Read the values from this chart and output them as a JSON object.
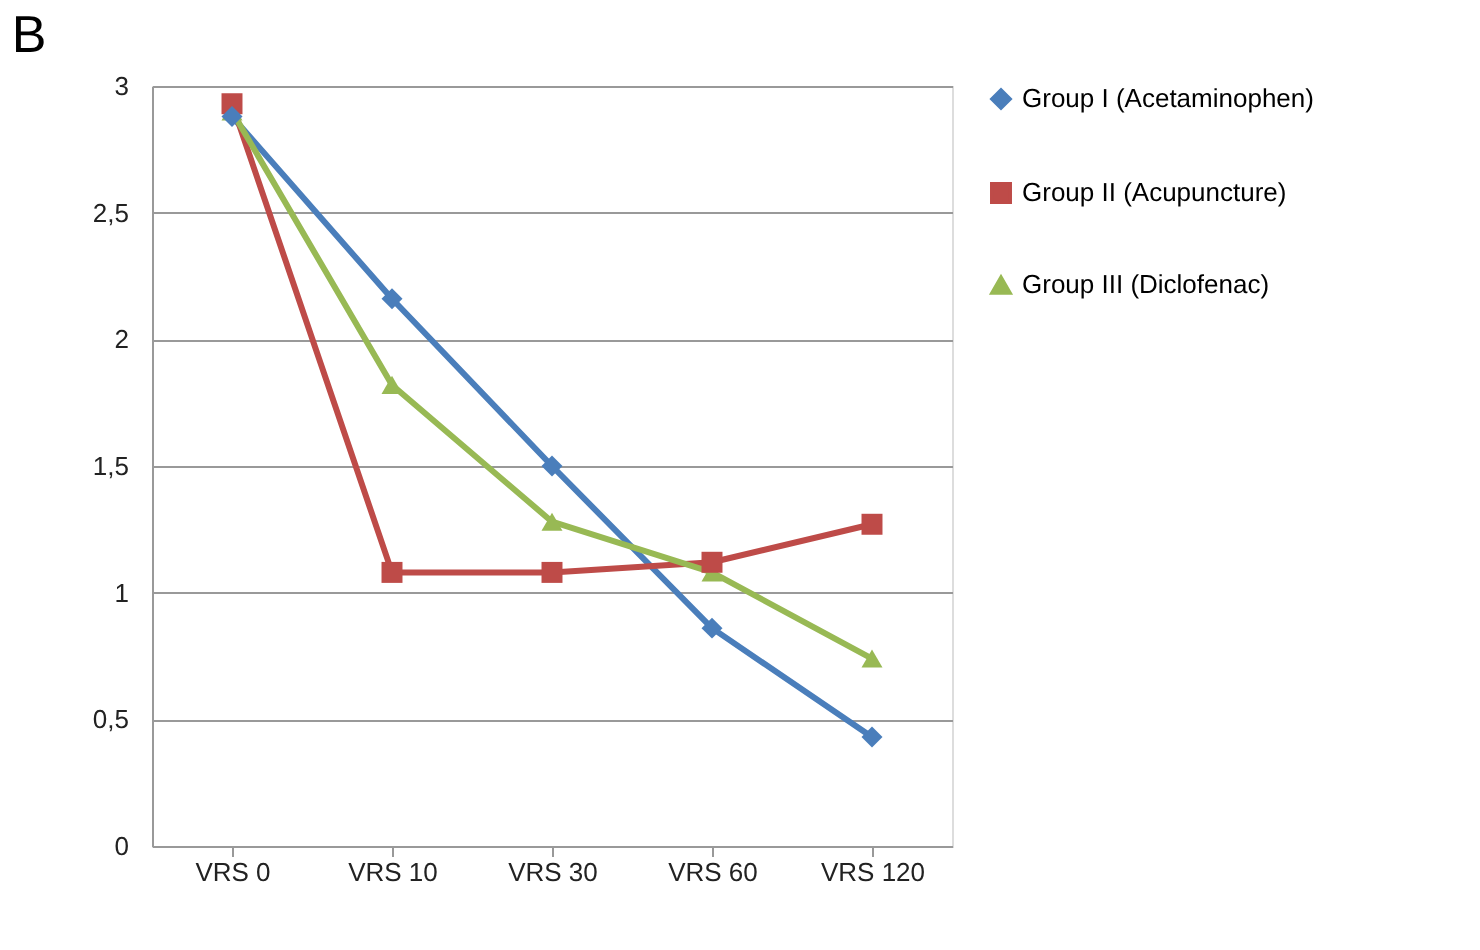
{
  "chart_data": {
    "type": "line",
    "title": "B",
    "categories": [
      "VRS 0",
      "VRS 10",
      "VRS 30",
      "VRS 60",
      "VRS 120"
    ],
    "series": [
      {
        "name": "Group I  (Acetaminophen)",
        "color": "#4a7ebb",
        "marker": "diamond",
        "values": [
          2.88,
          2.16,
          1.5,
          0.86,
          0.43
        ]
      },
      {
        "name": "Group II (Acupuncture)",
        "color": "#be4b48",
        "marker": "square",
        "values": [
          2.93,
          1.08,
          1.08,
          1.12,
          1.27
        ]
      },
      {
        "name": "Group III (Diclofenac)",
        "color": "#98b954",
        "marker": "triangle",
        "values": [
          2.9,
          1.82,
          1.28,
          1.08,
          0.74
        ]
      }
    ],
    "ylim": [
      0,
      3
    ],
    "yticks": [
      0,
      {
        "value": 0.5,
        "label": "0,5"
      },
      1,
      {
        "value": 1.5,
        "label": "1,5"
      },
      2,
      {
        "value": 2.5,
        "label": "2,5"
      },
      3
    ],
    "grid": "y",
    "legend": "right",
    "line_style": "solid"
  }
}
